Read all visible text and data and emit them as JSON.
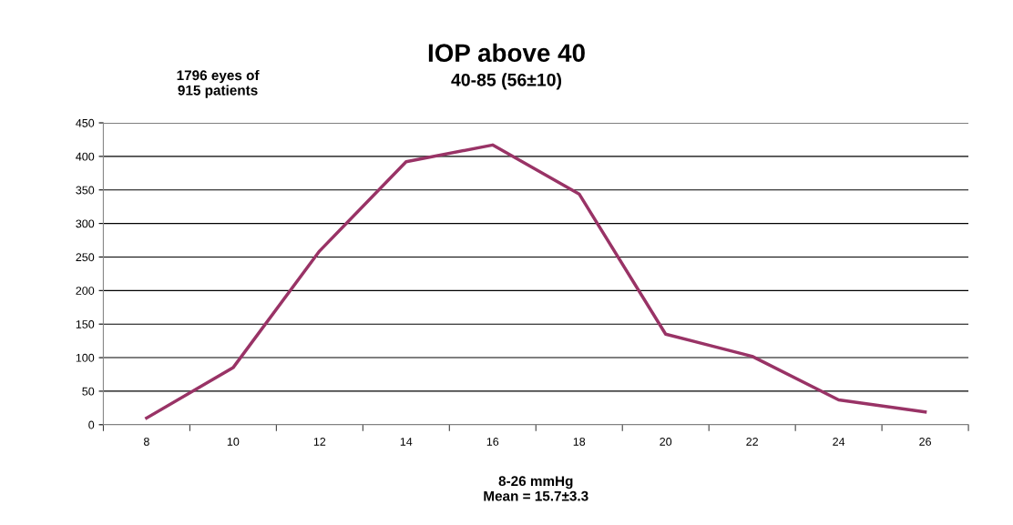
{
  "chart_data": {
    "type": "line",
    "title": "IOP above 40",
    "subtitle": "40-85 (56±10)",
    "xlabel": "8-26 mmHg\nMean = 15.7±3.3",
    "annotations": [
      "1796 eyes of\n915 patients"
    ],
    "categories": [
      "8",
      "10",
      "12",
      "14",
      "16",
      "18",
      "20",
      "22",
      "24",
      "26"
    ],
    "series": [
      {
        "color": "#993366",
        "values": [
          10,
          85,
          259,
          392,
          417,
          344,
          135,
          102,
          37,
          19
        ]
      }
    ],
    "ylim": [
      0,
      450
    ],
    "yticks": [
      0,
      50,
      100,
      150,
      200,
      250,
      300,
      350,
      400,
      450
    ],
    "grid": "y",
    "marker": "none",
    "line_style": "solid"
  }
}
